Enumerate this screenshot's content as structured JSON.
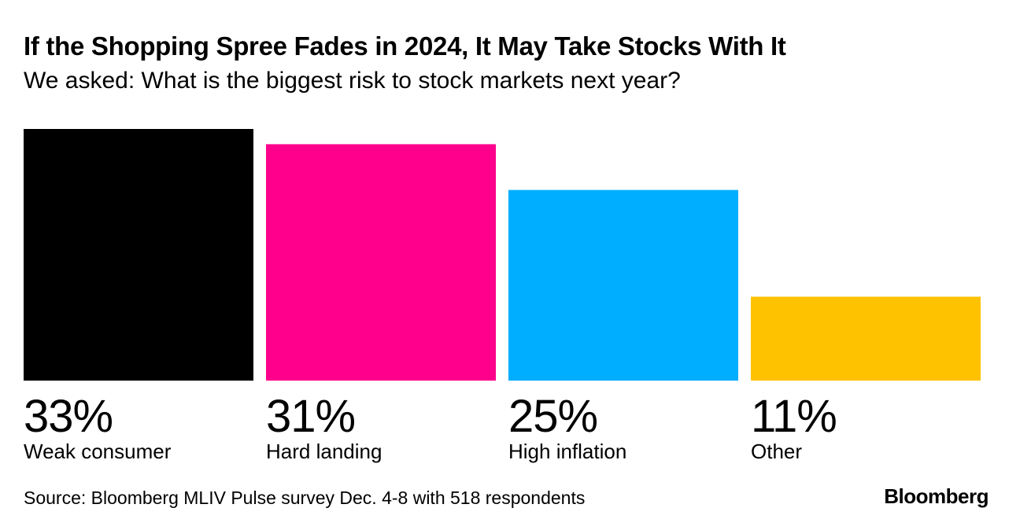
{
  "chart_data": {
    "type": "bar",
    "title": "If the Shopping Spree Fades in 2024, It May Take Stocks With It",
    "subtitle": "We asked: What is the biggest risk to stock markets next year?",
    "categories": [
      "Weak consumer",
      "Hard landing",
      "High inflation",
      "Other"
    ],
    "values": [
      33,
      31,
      25,
      11
    ],
    "value_labels": [
      "33%",
      "31%",
      "25%",
      "11%"
    ],
    "colors": [
      "#000000",
      "#ff008c",
      "#00aeff",
      "#ffc200"
    ],
    "ylim": [
      0,
      33
    ],
    "xlabel": "",
    "ylabel": "",
    "grid": false
  },
  "footer": {
    "source": "Source: Bloomberg MLIV Pulse survey Dec. 4-8 with 518 respondents",
    "brand": "Bloomberg"
  }
}
